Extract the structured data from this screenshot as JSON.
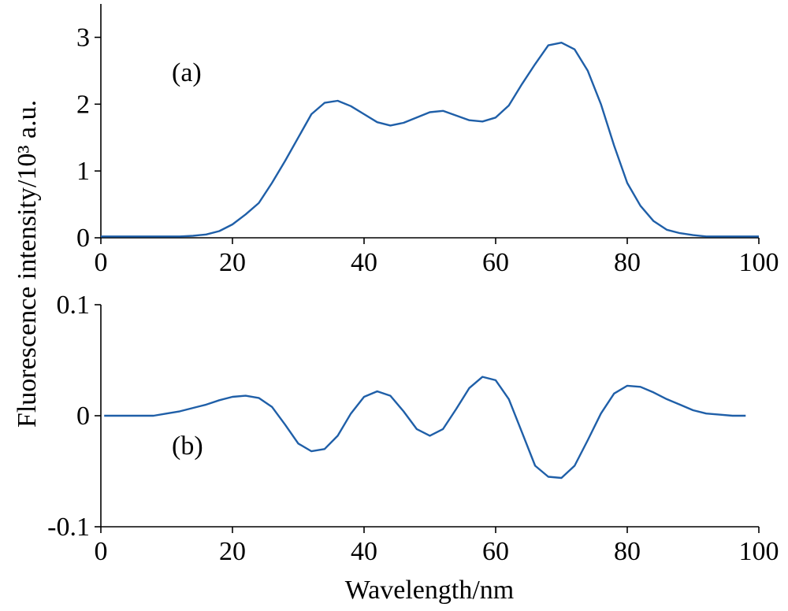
{
  "chart_data": [
    {
      "type": "line",
      "panel_label": "(a)",
      "ylabel": "Fluorescence intensity/10³ a.u.",
      "xlim": [
        0,
        100
      ],
      "ylim": [
        0,
        3.5
      ],
      "xticks": [
        0,
        20,
        40,
        60,
        80,
        100
      ],
      "xtick_labels": [
        "0",
        "20",
        "40",
        "60",
        "80",
        "100"
      ],
      "yticks": [
        0,
        1,
        2,
        3
      ],
      "ytick_labels": [
        "0",
        "1",
        "2",
        "3"
      ],
      "grid": false,
      "color": "#1f5fa8",
      "series": [
        {
          "x": [
            0,
            4,
            8,
            12,
            14,
            16,
            18,
            20,
            22,
            24,
            26,
            28,
            30,
            32,
            34,
            36,
            38,
            40,
            42,
            44,
            46,
            48,
            50,
            52,
            54,
            56,
            58,
            60,
            62,
            64,
            66,
            68,
            70,
            72,
            74,
            76,
            78,
            80,
            82,
            84,
            86,
            88,
            90,
            92,
            96,
            100
          ],
          "y": [
            0.02,
            0.02,
            0.02,
            0.02,
            0.03,
            0.05,
            0.1,
            0.2,
            0.35,
            0.52,
            0.82,
            1.15,
            1.5,
            1.85,
            2.02,
            2.05,
            1.97,
            1.85,
            1.73,
            1.68,
            1.72,
            1.8,
            1.88,
            1.9,
            1.83,
            1.76,
            1.74,
            1.8,
            1.98,
            2.3,
            2.6,
            2.88,
            2.92,
            2.82,
            2.5,
            2.0,
            1.38,
            0.82,
            0.48,
            0.25,
            0.12,
            0.07,
            0.04,
            0.02,
            0.02,
            0.02
          ]
        }
      ]
    },
    {
      "type": "line",
      "panel_label": "(b)",
      "xlabel": "Wavelength/nm",
      "xlim": [
        0,
        100
      ],
      "ylim": [
        -0.1,
        0.1
      ],
      "xticks": [
        0,
        20,
        40,
        60,
        80,
        100
      ],
      "xtick_labels": [
        "0",
        "20",
        "40",
        "60",
        "80",
        "100"
      ],
      "yticks": [
        -0.1,
        0,
        0.1
      ],
      "ytick_labels": [
        "-0.1",
        "0",
        "0.1"
      ],
      "grid": false,
      "color": "#1f5fa8",
      "series": [
        {
          "x": [
            0.5,
            4,
            8,
            10,
            12,
            14,
            16,
            18,
            20,
            22,
            24,
            26,
            28,
            30,
            32,
            34,
            36,
            38,
            40,
            42,
            44,
            46,
            48,
            50,
            52,
            54,
            56,
            58,
            60,
            62,
            64,
            66,
            68,
            70,
            72,
            74,
            76,
            78,
            80,
            82,
            84,
            86,
            88,
            90,
            92,
            94,
            96,
            98
          ],
          "y": [
            0,
            0,
            0,
            0.002,
            0.004,
            0.007,
            0.01,
            0.014,
            0.017,
            0.018,
            0.016,
            0.008,
            -0.008,
            -0.025,
            -0.032,
            -0.03,
            -0.018,
            0.002,
            0.017,
            0.022,
            0.018,
            0.004,
            -0.012,
            -0.018,
            -0.012,
            0.006,
            0.025,
            0.035,
            0.032,
            0.015,
            -0.015,
            -0.045,
            -0.055,
            -0.056,
            -0.045,
            -0.022,
            0.002,
            0.02,
            0.027,
            0.026,
            0.021,
            0.015,
            0.01,
            0.005,
            0.002,
            0.001,
            0,
            0
          ]
        }
      ]
    }
  ]
}
